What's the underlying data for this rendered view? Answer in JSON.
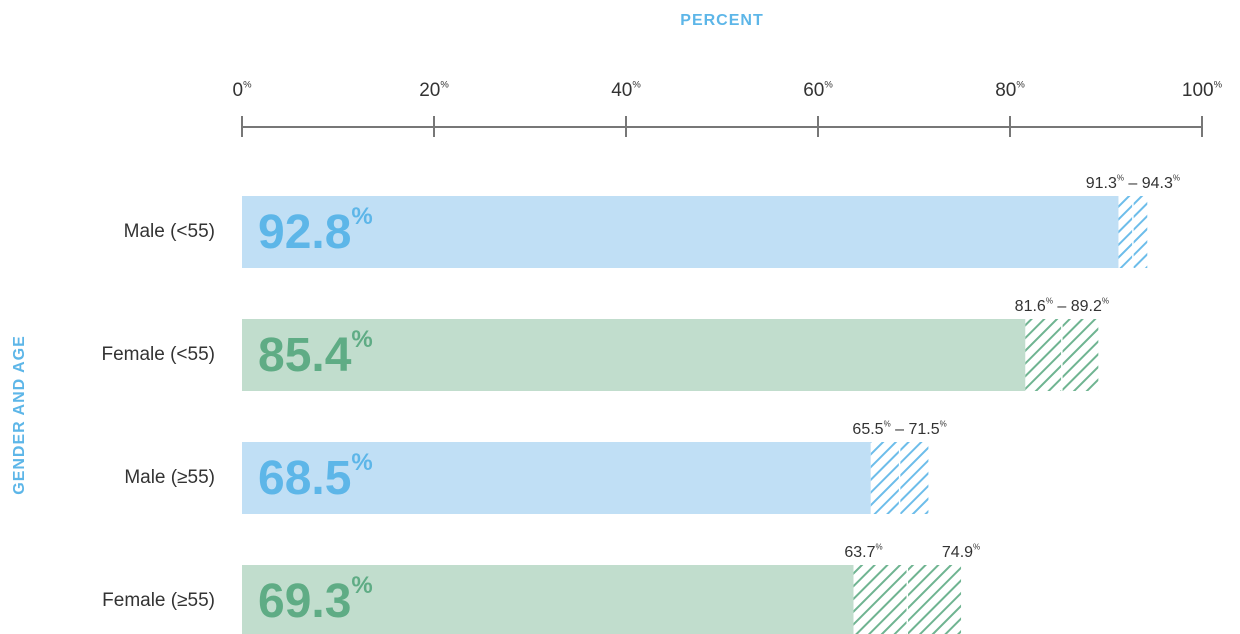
{
  "chart_data": {
    "type": "bar",
    "orientation": "horizontal",
    "x_axis_title": "PERCENT",
    "y_axis_title": "GENDER AND AGE",
    "categories": [
      "Male (<55)",
      "Female (<55)",
      "Male (≥55)",
      "Female (≥55)"
    ],
    "values": [
      92.8,
      85.4,
      68.5,
      69.3
    ],
    "value_labels": [
      "92.8%",
      "85.4%",
      "68.5%",
      "69.3%"
    ],
    "ci_low": [
      91.3,
      81.6,
      65.5,
      63.7
    ],
    "ci_high": [
      94.3,
      89.2,
      71.5,
      74.9
    ],
    "ci_labels": [
      "91.3% – 94.3%",
      "81.6% – 89.2%",
      "65.5% – 71.5%",
      [
        "63.7%",
        "74.9%"
      ]
    ],
    "colors": [
      "#c0dff5",
      "#c1ddcd",
      "#c0dff5",
      "#c1ddcd"
    ],
    "label_colors": [
      "#5db6e8",
      "#5fac85",
      "#5db6e8",
      "#5fac85"
    ],
    "xlim": [
      0,
      100
    ],
    "xticks": [
      {
        "value": 0,
        "label": "0%"
      },
      {
        "value": 20,
        "label": "20%"
      },
      {
        "value": 40,
        "label": "40%"
      },
      {
        "value": 60,
        "label": "60%"
      },
      {
        "value": 80,
        "label": "80%"
      },
      {
        "value": 100,
        "label": "100%"
      }
    ],
    "axis_title_color": "#5db6e8"
  }
}
